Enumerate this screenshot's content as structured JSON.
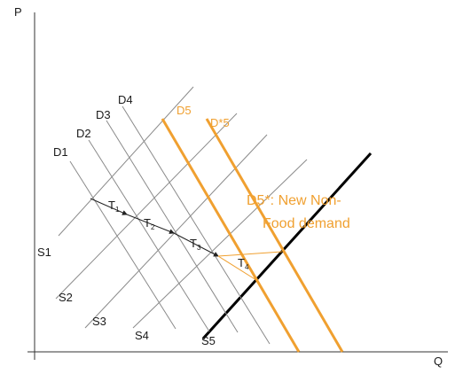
{
  "axes": {
    "y_label": "P",
    "x_label": "Q"
  },
  "demand_curves": [
    {
      "name": "D1",
      "label": "D1"
    },
    {
      "name": "D2",
      "label": "D2"
    },
    {
      "name": "D3",
      "label": "D3"
    },
    {
      "name": "D4",
      "label": "D4"
    },
    {
      "name": "D5",
      "label": "D5"
    },
    {
      "name": "D*5",
      "label": "D*5"
    }
  ],
  "supply_curves": [
    {
      "name": "S1",
      "label": "S1"
    },
    {
      "name": "S2",
      "label": "S2"
    },
    {
      "name": "S3",
      "label": "S3"
    },
    {
      "name": "S4",
      "label": "S4"
    },
    {
      "name": "S5",
      "label": "S5"
    }
  ],
  "transitions": [
    {
      "letter": "T",
      "sub": "1"
    },
    {
      "letter": "T",
      "sub": "2"
    },
    {
      "letter": "T",
      "sub": "3"
    },
    {
      "letter": "T",
      "sub": "4"
    }
  ],
  "annotation": {
    "line1": "D5*: New Non-",
    "line2": "Food demand"
  },
  "colors": {
    "base": "#8a8a8a",
    "highlight": "#f0a030",
    "axis": "#333333",
    "s5": "#000000",
    "arrow": "#222222"
  }
}
